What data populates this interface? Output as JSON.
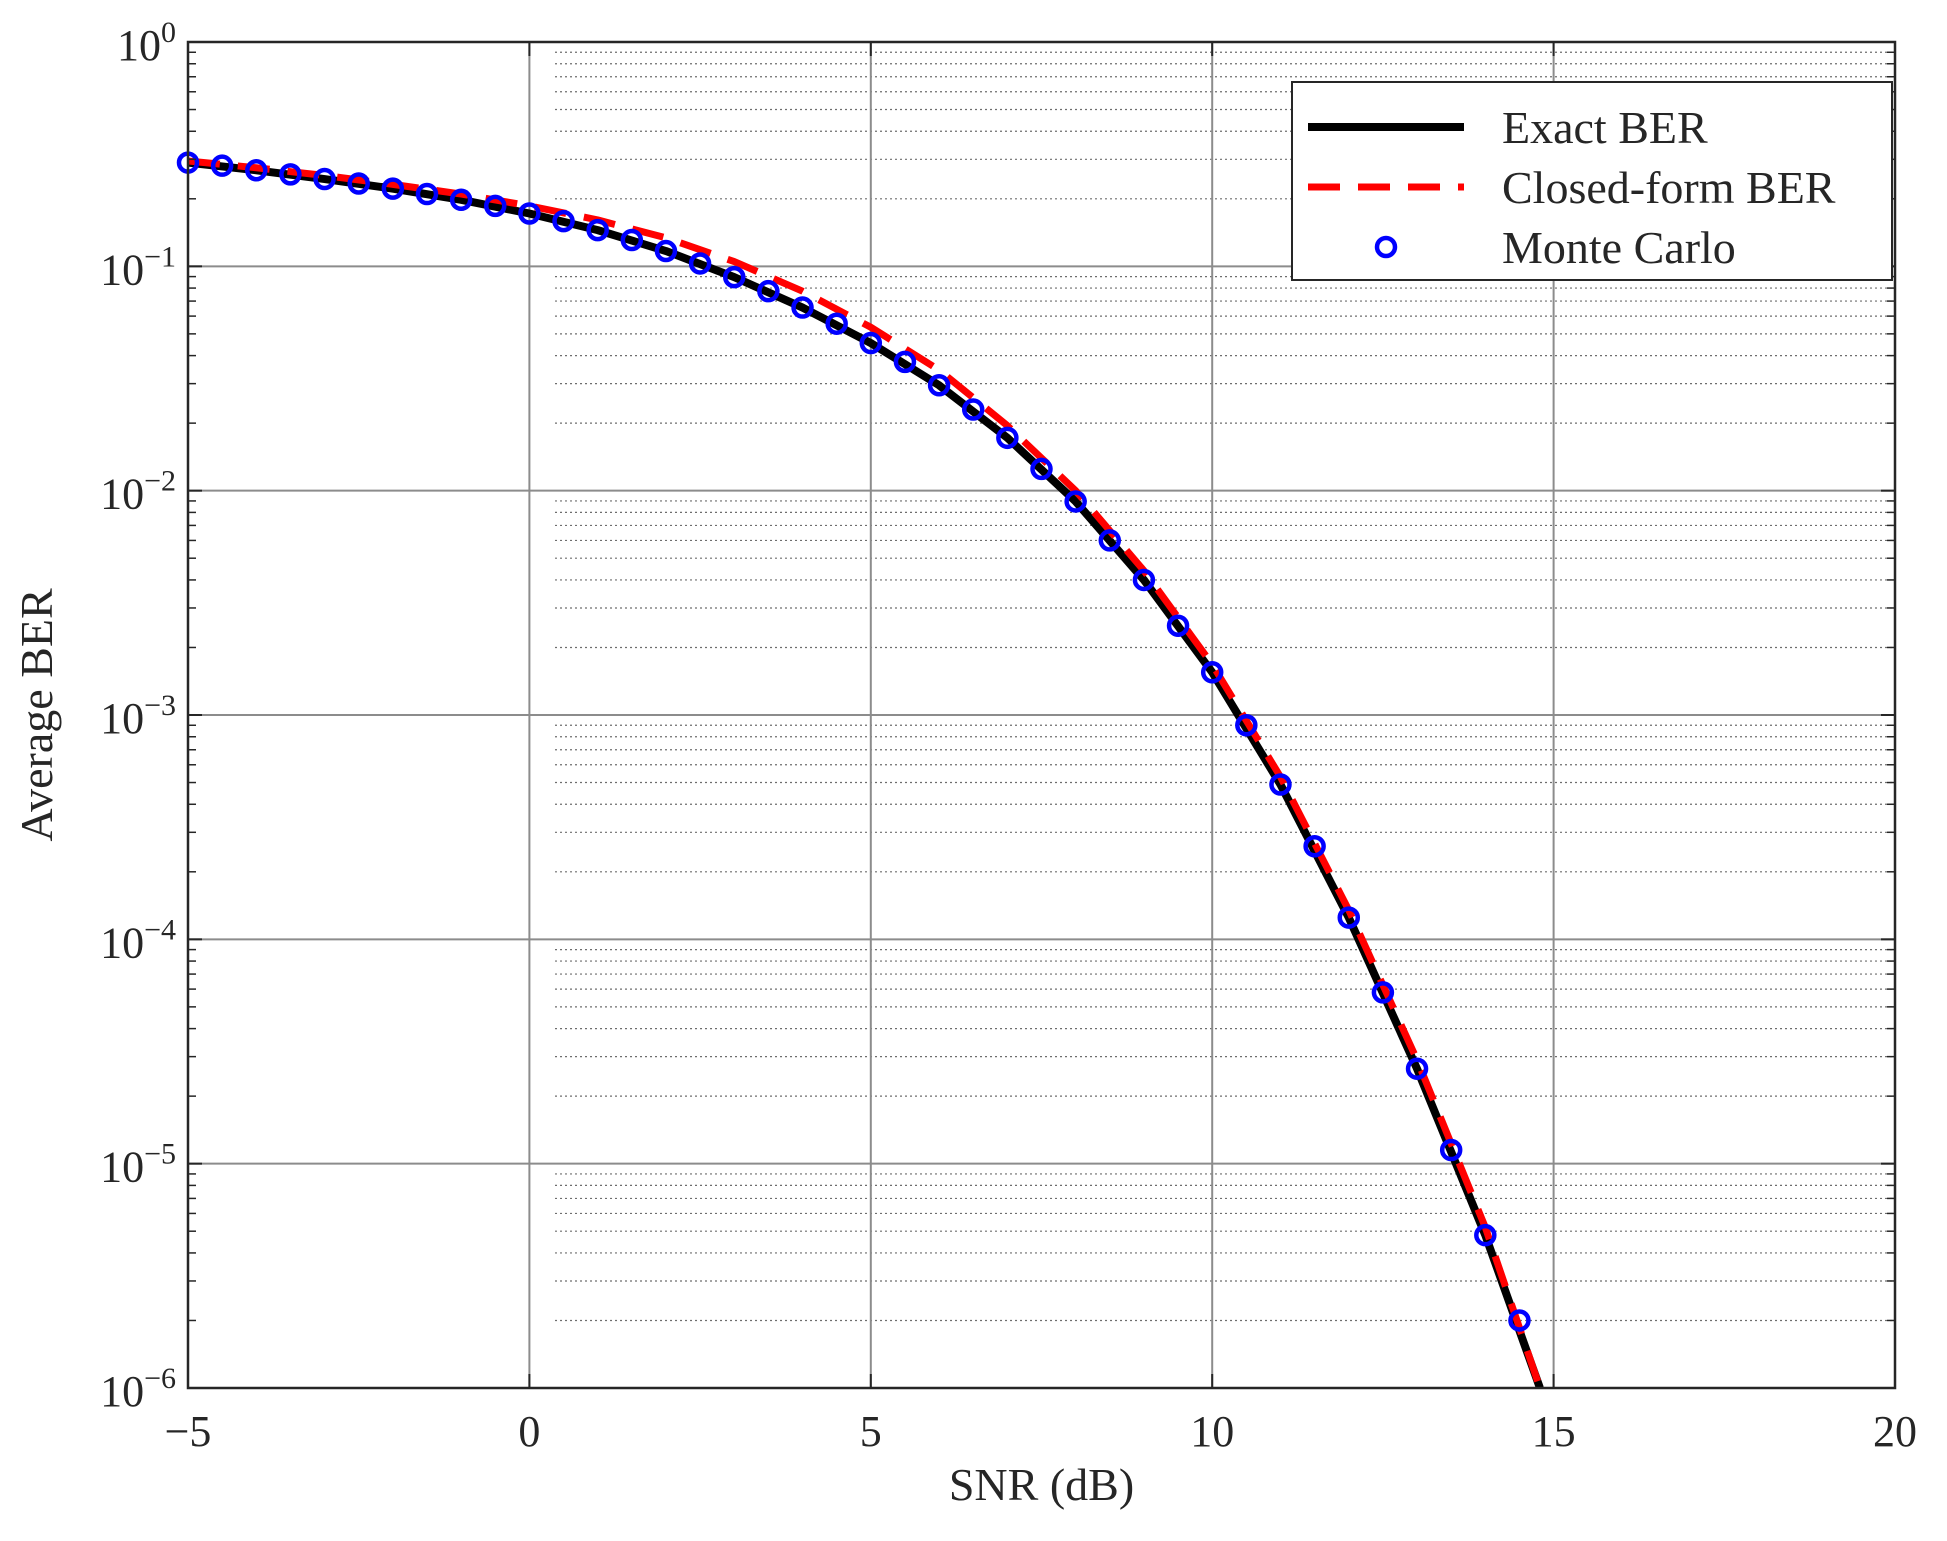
{
  "chart_data": {
    "type": "line",
    "title": "",
    "xlabel": "SNR (dB)",
    "ylabel": "Average BER",
    "xlim": [
      -5,
      20
    ],
    "ylim": [
      1e-06,
      1
    ],
    "yscale": "log",
    "grid": true,
    "legend_position": "top-right",
    "x_ticks": [
      "−5",
      "0",
      "5",
      "10",
      "15",
      "20"
    ],
    "y_ticks": [
      {
        "base": "10",
        "exp": "0"
      },
      {
        "base": "10",
        "exp": "−1"
      },
      {
        "base": "10",
        "exp": "−2"
      },
      {
        "base": "10",
        "exp": "−3"
      },
      {
        "base": "10",
        "exp": "−4"
      },
      {
        "base": "10",
        "exp": "−5"
      },
      {
        "base": "10",
        "exp": "−6"
      }
    ],
    "series": [
      {
        "name": "Exact BER",
        "style": "solid",
        "color": "#000000",
        "x": [
          -5,
          -4,
          -3,
          -2,
          -1,
          0,
          1,
          2,
          3,
          4,
          5,
          6,
          7,
          8,
          9,
          10,
          11,
          12,
          13,
          14,
          14.8
        ],
        "y": [
          0.29,
          0.268,
          0.245,
          0.222,
          0.198,
          0.172,
          0.145,
          0.117,
          0.0895,
          0.0655,
          0.0455,
          0.0295,
          0.0172,
          0.00895,
          0.004,
          0.00155,
          0.00049,
          0.000125,
          2.65e-05,
          4.8e-06,
          1e-06
        ]
      },
      {
        "name": "Closed-form BER",
        "style": "dashed",
        "color": "#ff0000",
        "x": [
          -5,
          -4,
          -3,
          -2,
          -1,
          0,
          1,
          2,
          3,
          4,
          5,
          6,
          7,
          8,
          9,
          10,
          11,
          12,
          13,
          14,
          14.8
        ],
        "y": [
          0.295,
          0.275,
          0.254,
          0.232,
          0.21,
          0.186,
          0.161,
          0.134,
          0.105,
          0.0775,
          0.0535,
          0.0345,
          0.0195,
          0.01,
          0.0044,
          0.00168,
          0.00053,
          0.000135,
          2.9e-05,
          5.2e-06,
          1e-06
        ]
      },
      {
        "name": "Monte Carlo",
        "style": "markers",
        "color": "#0000ff",
        "x": [
          -5,
          -4.5,
          -4,
          -3.5,
          -3,
          -2.5,
          -2,
          -1.5,
          -1,
          -0.5,
          0,
          0.5,
          1,
          1.5,
          2,
          2.5,
          3,
          3.5,
          4,
          4.5,
          5,
          5.5,
          6,
          6.5,
          7,
          7.5,
          8,
          8.5,
          9,
          9.5,
          10,
          10.5,
          11,
          11.5,
          12,
          12.5,
          13,
          13.5,
          14,
          14.5
        ],
        "y": [
          0.29,
          0.281,
          0.268,
          0.257,
          0.245,
          0.234,
          0.222,
          0.21,
          0.198,
          0.186,
          0.172,
          0.159,
          0.145,
          0.131,
          0.117,
          0.103,
          0.0895,
          0.0775,
          0.0655,
          0.0555,
          0.0455,
          0.0375,
          0.0295,
          0.023,
          0.0172,
          0.0125,
          0.00895,
          0.006,
          0.004,
          0.0025,
          0.00155,
          0.0009,
          0.00049,
          0.00026,
          0.000125,
          5.8e-05,
          2.65e-05,
          1.15e-05,
          4.8e-06,
          2e-06
        ]
      }
    ]
  }
}
